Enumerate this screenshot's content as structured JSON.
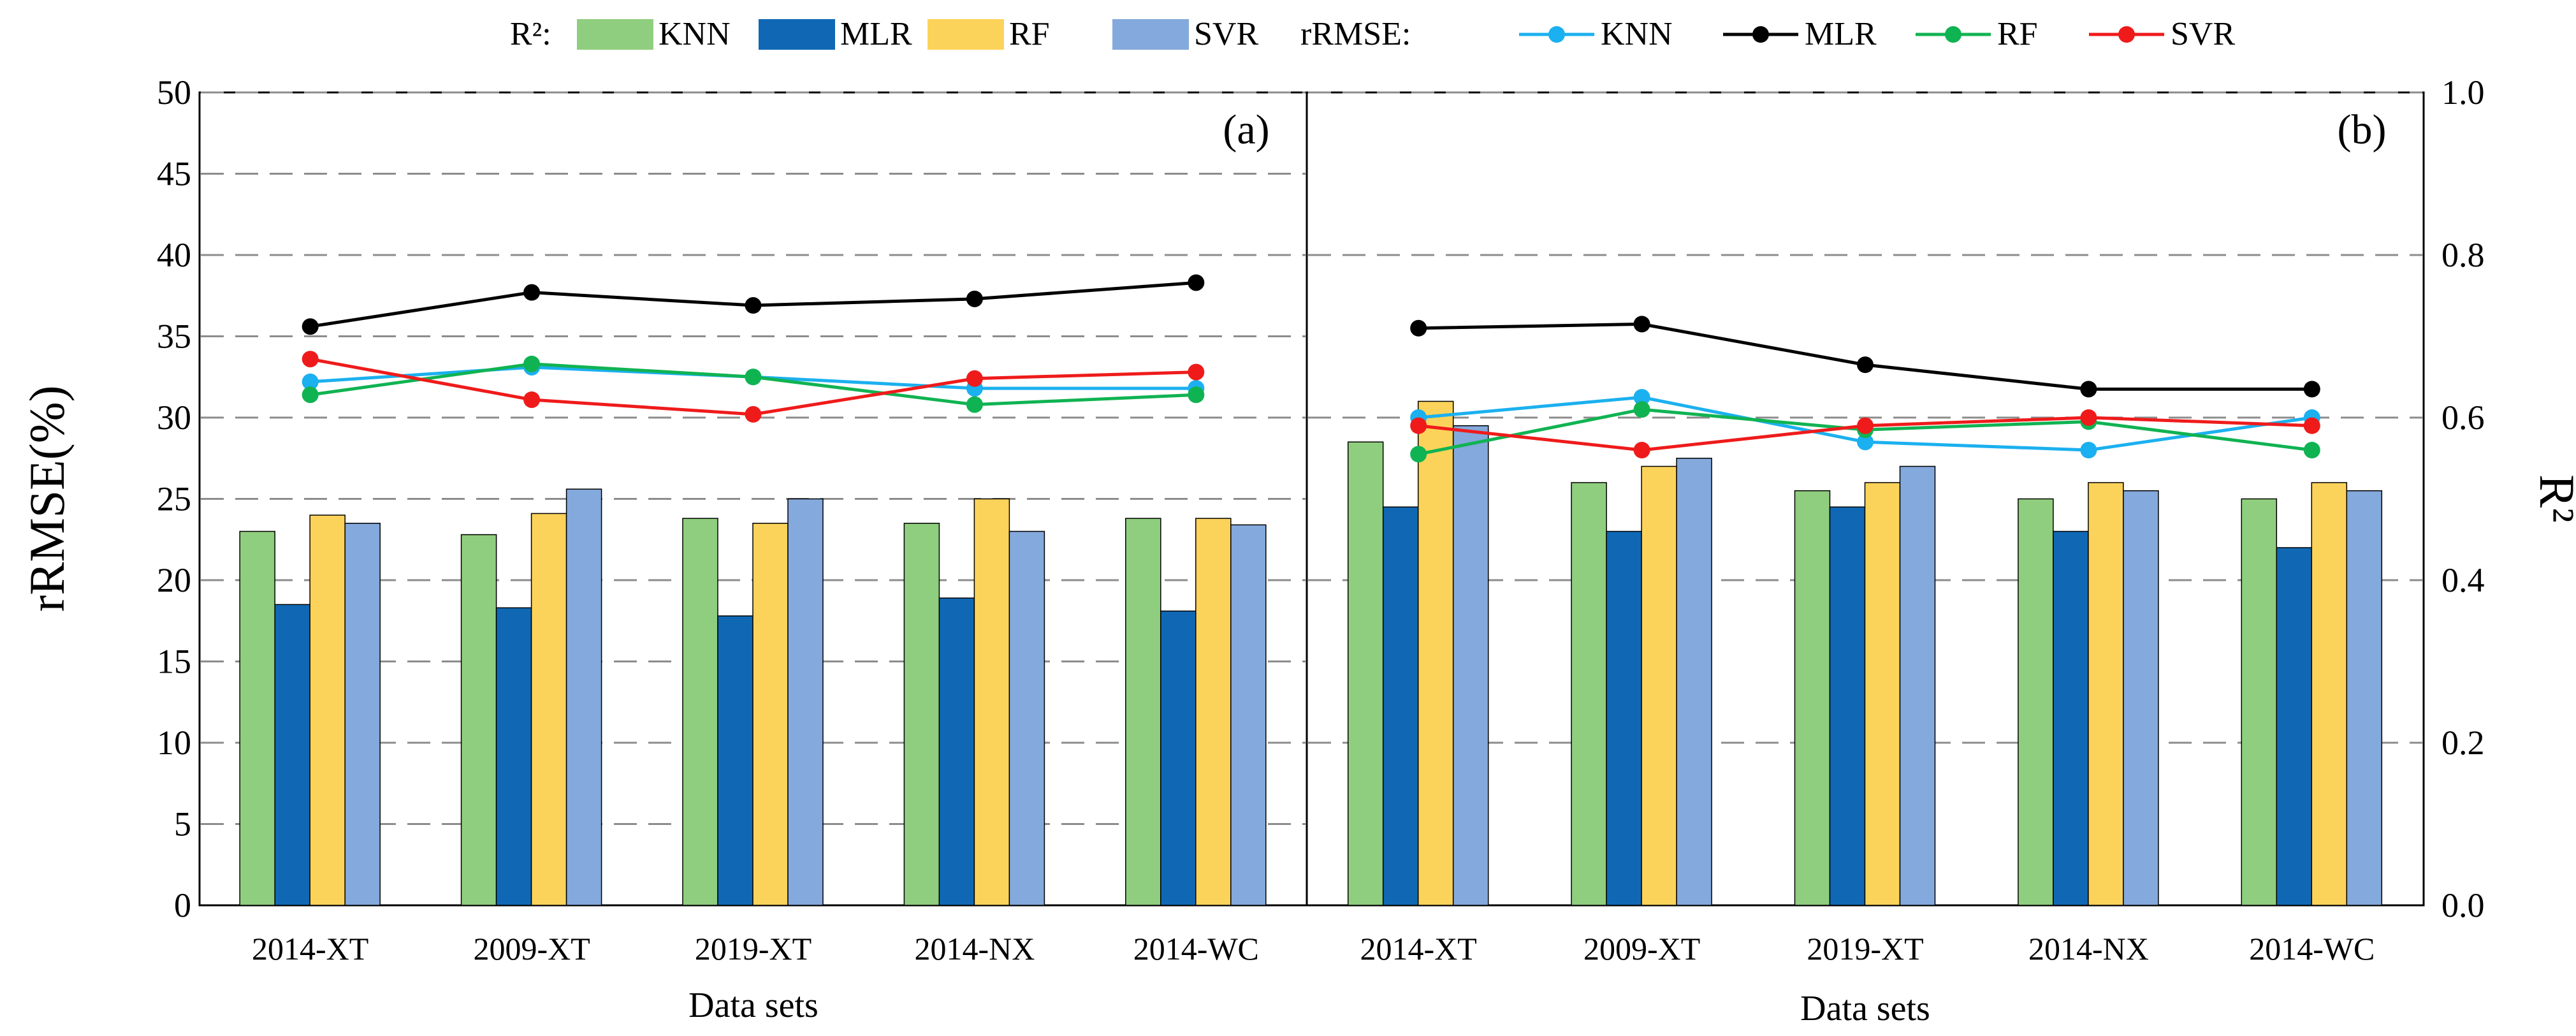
{
  "legend": {
    "r2_prefix": "R²:",
    "rrmse_prefix": "rRMSE:",
    "r2_items": [
      {
        "name": "KNN",
        "color": "#8fce7e"
      },
      {
        "name": "MLR",
        "color": "#1068b4"
      },
      {
        "name": "RF",
        "color": "#fcd35a"
      },
      {
        "name": "SVR",
        "color": "#84a9dc"
      }
    ],
    "rrmse_items": [
      {
        "name": "KNN",
        "color": "#1bb0ef"
      },
      {
        "name": "MLR",
        "color": "#000000"
      },
      {
        "name": "RF",
        "color": "#10b352"
      },
      {
        "name": "SVR",
        "color": "#ef1b1b"
      }
    ]
  },
  "chart_data": [
    {
      "type": "bar+line",
      "panel_label": "(a)",
      "xlabel": "Data sets",
      "ylabel": "rRMSE(%)",
      "ylim": [
        0,
        50
      ],
      "yticks": [
        "0",
        "5",
        "10",
        "15",
        "20",
        "25",
        "30",
        "35",
        "40",
        "45",
        "50"
      ],
      "categories": [
        "2014-XT",
        "2009-XT",
        "2019-XT",
        "2014-NX",
        "2014-WC"
      ],
      "bar_series": [
        {
          "name": "KNN",
          "values": [
            23.0,
            22.8,
            23.8,
            23.5,
            23.8
          ]
        },
        {
          "name": "MLR",
          "values": [
            18.5,
            18.3,
            17.8,
            18.9,
            18.1
          ]
        },
        {
          "name": "RF",
          "values": [
            24.0,
            24.1,
            23.5,
            25.0,
            23.8
          ]
        },
        {
          "name": "SVR",
          "values": [
            23.5,
            25.6,
            25.0,
            23.0,
            23.4
          ]
        }
      ],
      "line_series": [
        {
          "name": "KNN",
          "values": [
            32.2,
            33.1,
            32.5,
            31.8,
            31.8
          ]
        },
        {
          "name": "MLR",
          "values": [
            35.6,
            37.7,
            36.9,
            37.3,
            38.3
          ]
        },
        {
          "name": "RF",
          "values": [
            31.4,
            33.3,
            32.5,
            30.8,
            31.4
          ]
        },
        {
          "name": "SVR",
          "values": [
            33.6,
            31.1,
            30.2,
            32.4,
            32.8
          ]
        }
      ]
    },
    {
      "type": "bar+line",
      "panel_label": "(b)",
      "xlabel": "Data sets",
      "ylabel": "R²",
      "ylim": [
        0.0,
        1.0
      ],
      "yticks": [
        "0.0",
        "0.2",
        "0.4",
        "0.6",
        "0.8",
        "1.0"
      ],
      "categories": [
        "2014-XT",
        "2009-XT",
        "2019-XT",
        "2014-NX",
        "2014-WC"
      ],
      "bar_series": [
        {
          "name": "KNN",
          "values": [
            0.57,
            0.52,
            0.51,
            0.5,
            0.5
          ]
        },
        {
          "name": "MLR",
          "values": [
            0.49,
            0.46,
            0.49,
            0.46,
            0.44
          ]
        },
        {
          "name": "RF",
          "values": [
            0.62,
            0.54,
            0.52,
            0.52,
            0.52
          ]
        },
        {
          "name": "SVR",
          "values": [
            0.59,
            0.55,
            0.54,
            0.51,
            0.51
          ]
        }
      ],
      "line_series": [
        {
          "name": "KNN",
          "values": [
            0.6,
            0.625,
            0.57,
            0.56,
            0.6
          ]
        },
        {
          "name": "MLR",
          "values": [
            0.71,
            0.715,
            0.665,
            0.635,
            0.635
          ]
        },
        {
          "name": "RF",
          "values": [
            0.555,
            0.61,
            0.585,
            0.595,
            0.56
          ]
        },
        {
          "name": "SVR",
          "values": [
            0.59,
            0.56,
            0.59,
            0.6,
            0.59
          ]
        }
      ]
    }
  ]
}
